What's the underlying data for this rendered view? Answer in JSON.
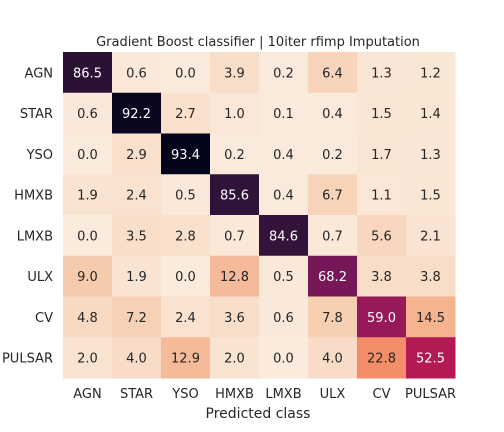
{
  "chart_data": {
    "type": "heatmap",
    "title": "Gradient Boost classifier | 10iter rfimp Imputation",
    "xlabel": "Predicted class",
    "ylabel": "",
    "x_categories": [
      "AGN",
      "STAR",
      "YSO",
      "HMXB",
      "LMXB",
      "ULX",
      "CV",
      "PULSAR"
    ],
    "y_categories": [
      "AGN",
      "STAR",
      "YSO",
      "HMXB",
      "LMXB",
      "ULX",
      "CV",
      "PULSAR"
    ],
    "values": [
      [
        86.5,
        0.6,
        0.0,
        3.9,
        0.2,
        6.4,
        1.3,
        1.2
      ],
      [
        0.6,
        92.2,
        2.7,
        1.0,
        0.1,
        0.4,
        1.5,
        1.4
      ],
      [
        0.0,
        2.9,
        93.4,
        0.2,
        0.4,
        0.2,
        1.7,
        1.3
      ],
      [
        1.9,
        2.4,
        0.5,
        85.6,
        0.4,
        6.7,
        1.1,
        1.5
      ],
      [
        0.0,
        3.5,
        2.8,
        0.7,
        84.6,
        0.7,
        5.6,
        2.1
      ],
      [
        9.0,
        1.9,
        0.0,
        12.8,
        0.5,
        68.2,
        3.8,
        3.8
      ],
      [
        4.8,
        7.2,
        2.4,
        3.6,
        0.6,
        7.8,
        59.0,
        14.5
      ],
      [
        2.0,
        4.0,
        12.9,
        2.0,
        0.0,
        4.0,
        22.8,
        52.5
      ]
    ],
    "value_range": [
      0,
      93.4
    ],
    "colormap": "rocket_r",
    "colorbar": false,
    "grid": false
  }
}
